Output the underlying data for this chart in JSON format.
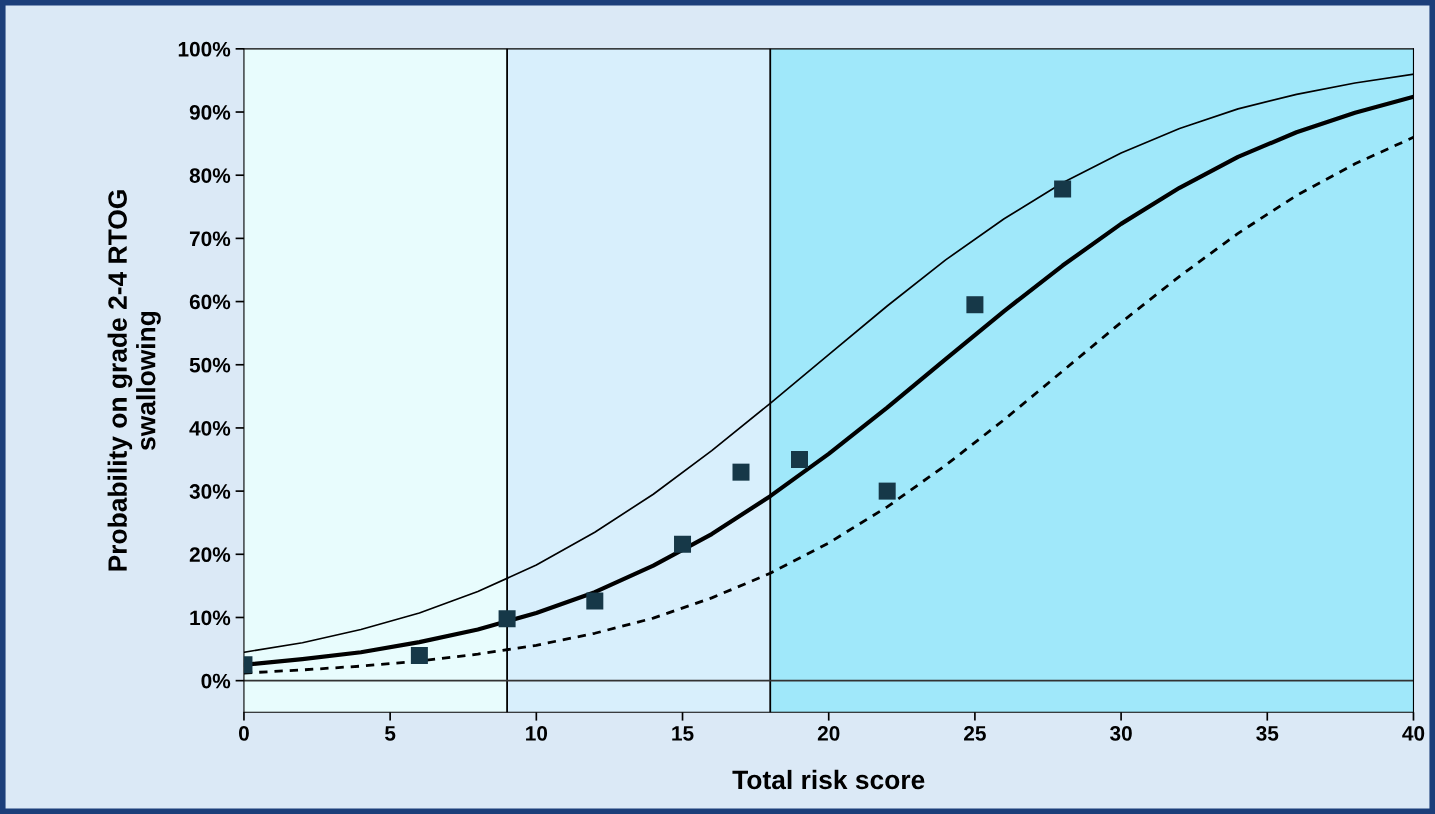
{
  "chart_data": {
    "type": "line",
    "xlabel": "Total risk score",
    "ylabel": "Probability on grade 2-4 RTOG\nswallowing",
    "xlim": [
      0,
      40
    ],
    "xticks": [
      0,
      5,
      10,
      15,
      20,
      25,
      30,
      35,
      40
    ],
    "ylim": [
      -5,
      100
    ],
    "yticks": [
      {
        "value": 0,
        "label": "0%"
      },
      {
        "value": 10,
        "label": "10%"
      },
      {
        "value": 20,
        "label": "20%"
      },
      {
        "value": 30,
        "label": "30%"
      },
      {
        "value": 40,
        "label": "40%"
      },
      {
        "value": 50,
        "label": "50%"
      },
      {
        "value": 60,
        "label": "60%"
      },
      {
        "value": 70,
        "label": "70%"
      },
      {
        "value": 80,
        "label": "80%"
      },
      {
        "value": 90,
        "label": "90%"
      },
      {
        "value": 100,
        "label": "100%"
      }
    ],
    "grid": false,
    "legend": false,
    "bands": [
      {
        "axis": "x",
        "from": 0,
        "to": 9,
        "color": "#e8fcfd"
      },
      {
        "axis": "x",
        "from": 9,
        "to": 18,
        "color": "#d8effc"
      },
      {
        "axis": "x",
        "from": 18,
        "to": 40,
        "color": "#a0e8fa"
      }
    ],
    "ref_lines": [
      {
        "axis": "x",
        "value": 9,
        "color": "#000000"
      },
      {
        "axis": "x",
        "value": 18,
        "color": "#000000"
      },
      {
        "axis": "y",
        "value": 0,
        "color": "#333333"
      }
    ],
    "series": [
      {
        "color": "#000000",
        "line_style": "solid",
        "x": [
          0,
          2,
          4,
          6,
          8,
          10,
          12,
          14,
          16,
          18,
          20,
          22,
          24,
          26,
          28,
          30,
          32,
          34,
          36,
          38,
          40
        ],
        "values": [
          4.5,
          6.0,
          8.1,
          10.7,
          14.1,
          18.3,
          23.5,
          29.5,
          36.4,
          43.9,
          51.6,
          59.3,
          66.6,
          73.1,
          78.8,
          83.5,
          87.4,
          90.5,
          92.8,
          94.6,
          96.0
        ]
      },
      {
        "color": "#000000",
        "line_style": "solid",
        "x": [
          0,
          2,
          4,
          6,
          8,
          10,
          12,
          14,
          16,
          18,
          20,
          22,
          24,
          26,
          28,
          30,
          32,
          34,
          36,
          38,
          40
        ],
        "values": [
          2.5,
          3.4,
          4.5,
          6.1,
          8.1,
          10.7,
          14.0,
          18.2,
          23.2,
          29.2,
          35.9,
          43.2,
          50.9,
          58.5,
          65.7,
          72.3,
          78.0,
          82.9,
          86.8,
          89.9,
          92.4
        ]
      },
      {
        "color": "#000000",
        "line_style": "dashed",
        "x": [
          0,
          2,
          4,
          6,
          8,
          10,
          12,
          14,
          16,
          18,
          20,
          22,
          24,
          26,
          28,
          30,
          32,
          34,
          36,
          38,
          40
        ],
        "values": [
          1.2,
          1.7,
          2.3,
          3.1,
          4.2,
          5.6,
          7.5,
          9.9,
          13.1,
          17.0,
          21.8,
          27.5,
          34.1,
          41.3,
          49.0,
          56.7,
          64.0,
          70.8,
          76.8,
          81.8,
          86.0
        ]
      },
      {
        "type": "scatter",
        "color": "#163848",
        "marker": "square",
        "x": [
          0,
          6,
          9,
          12,
          15,
          17,
          19,
          22,
          25,
          28
        ],
        "values": [
          2.5,
          4,
          9.8,
          12.6,
          21.6,
          33,
          35,
          30,
          59.5,
          77.8
        ]
      }
    ]
  }
}
